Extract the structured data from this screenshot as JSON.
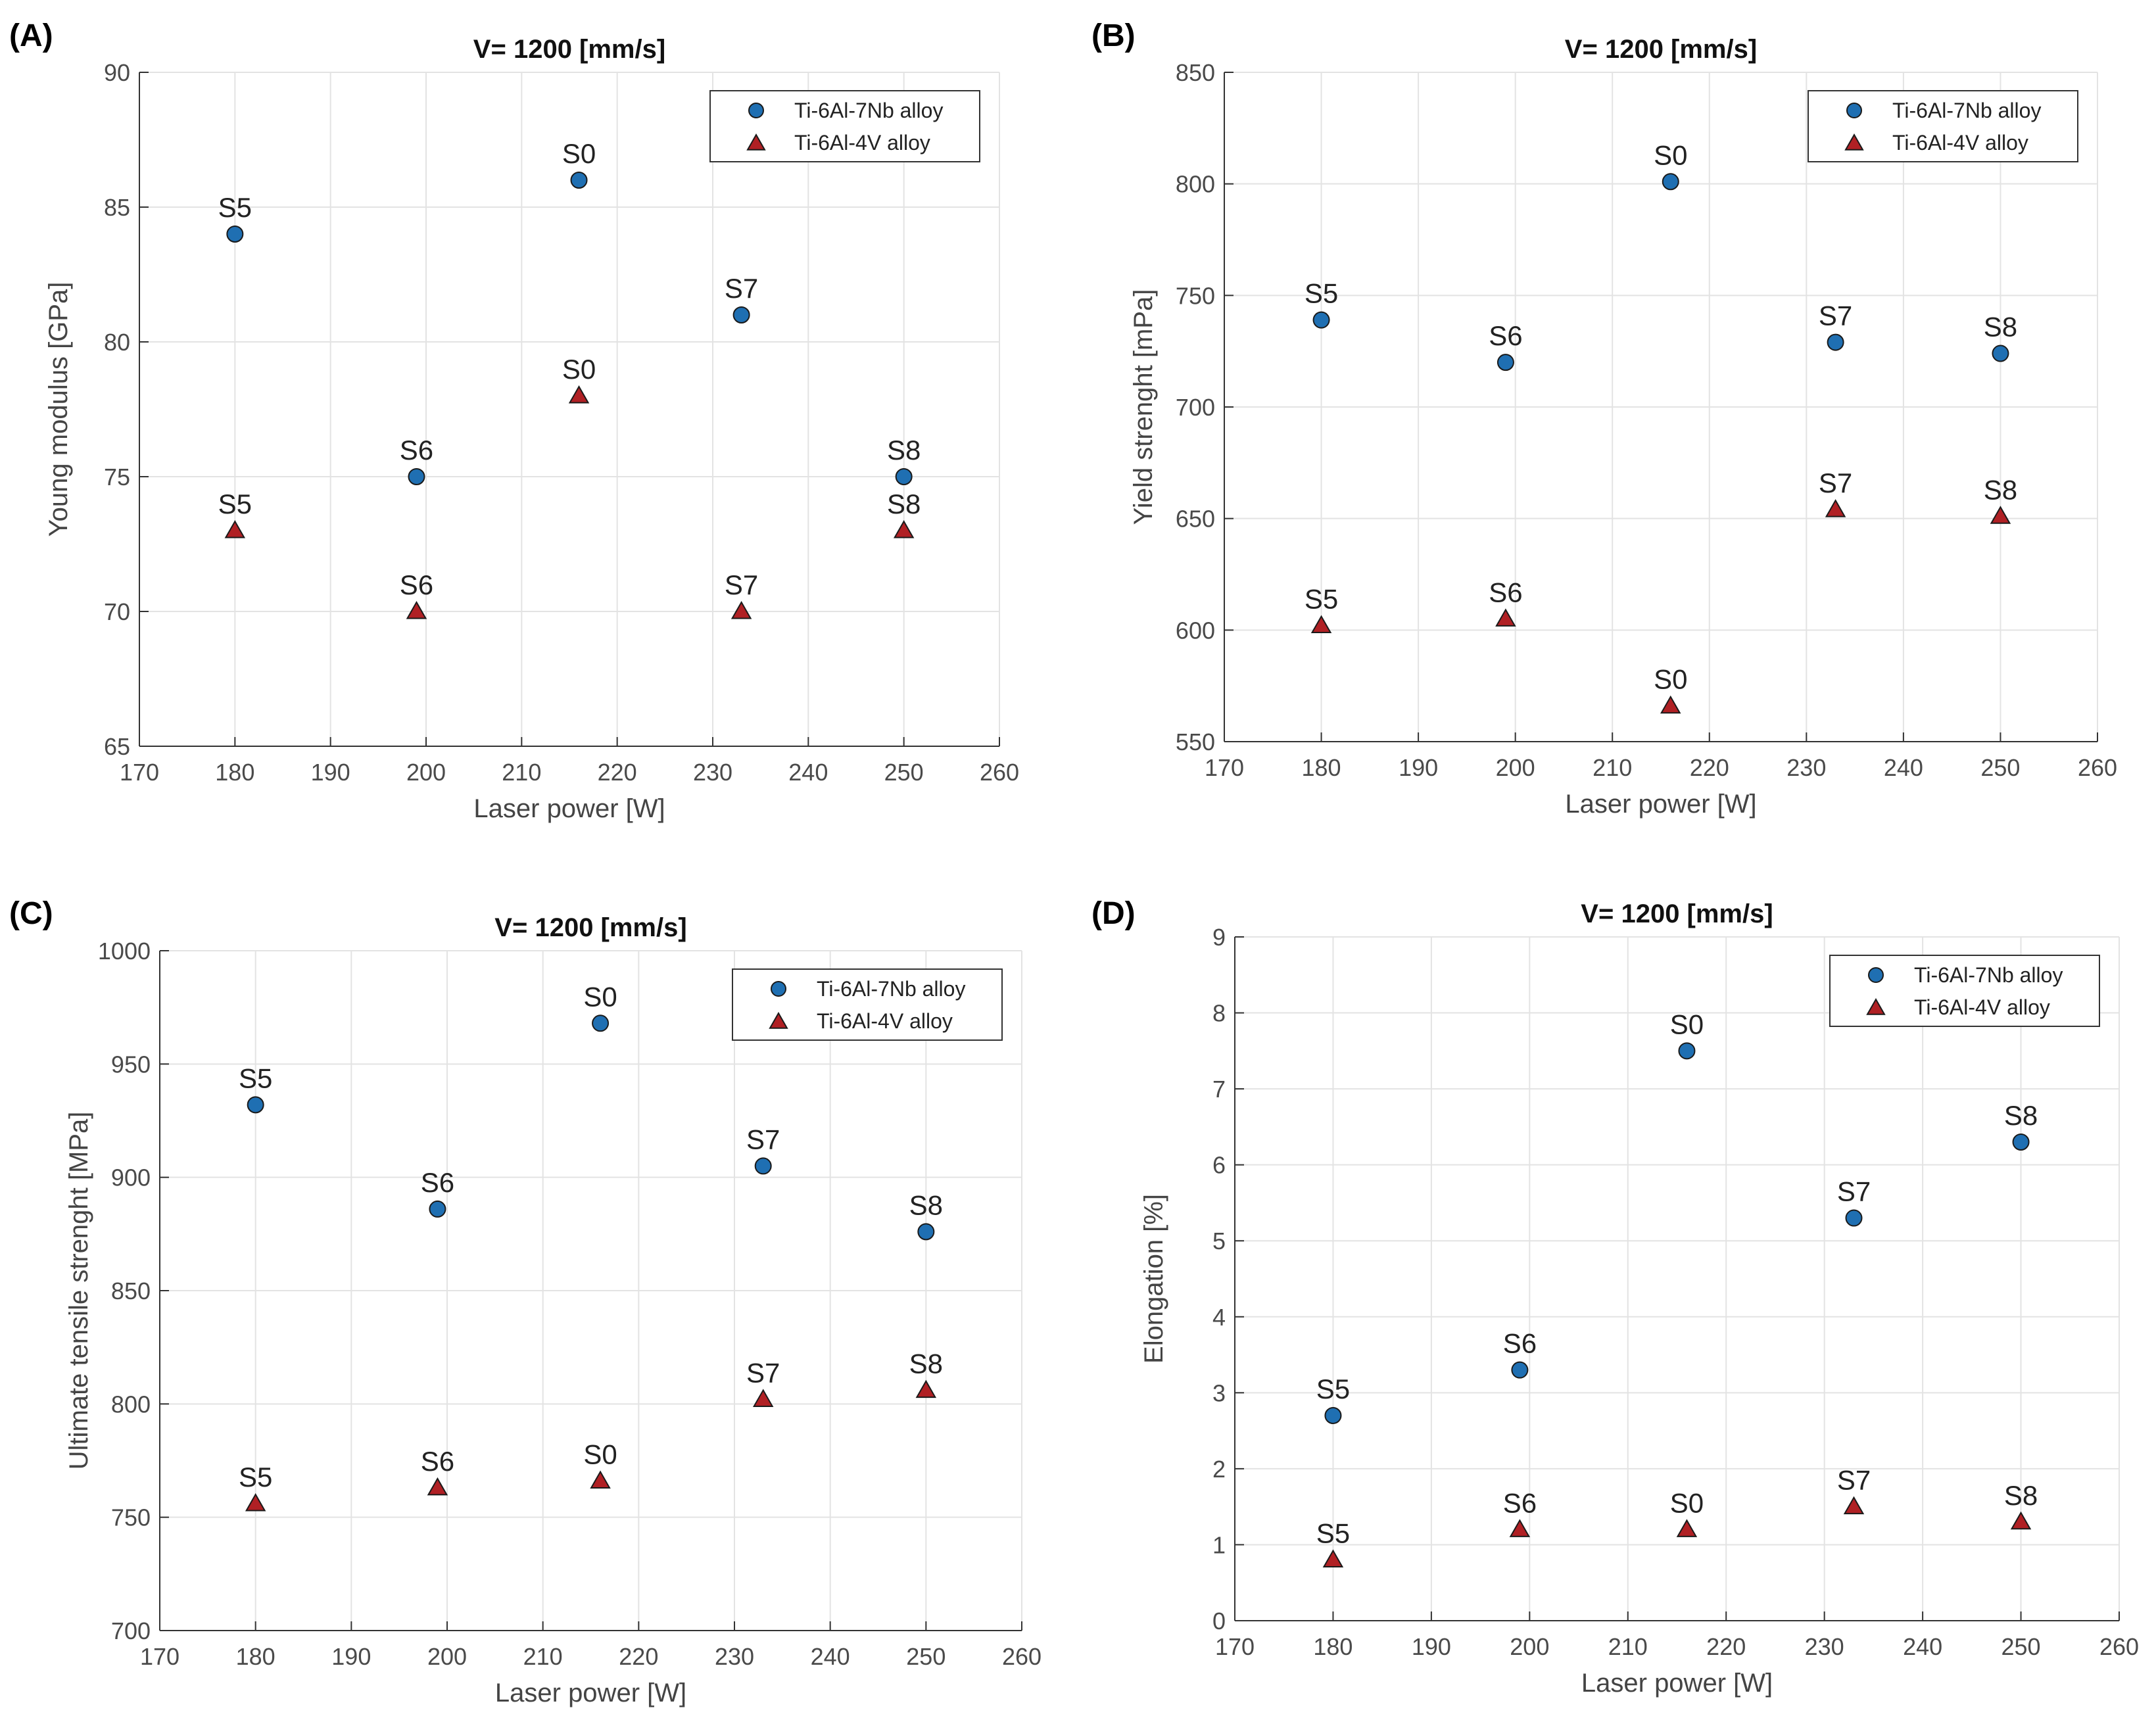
{
  "figure": {
    "panel_letters": [
      "(A)",
      "(B)",
      "(C)",
      "(D)"
    ]
  },
  "colors": {
    "nb_marker": "#1f6fb2",
    "v_marker": "#b02024",
    "marker_edge": "#1a1a1a"
  },
  "chart_data": [
    {
      "type": "scatter",
      "panel": "(A)",
      "title": "V= 1200 [mm/s]",
      "xlabel": "Laser power [W]",
      "ylabel": "Young modulus [GPa]",
      "xlim": [
        170,
        260
      ],
      "ylim": [
        65,
        90
      ],
      "xticks": [
        170,
        180,
        190,
        200,
        210,
        220,
        230,
        240,
        250,
        260
      ],
      "yticks": [
        65,
        70,
        75,
        80,
        85,
        90
      ],
      "legend_position": "top-right",
      "series": [
        {
          "name": "Ti-6Al-7Nb alloy",
          "marker": "circle",
          "points": [
            {
              "x": 180,
              "y": 84,
              "label": "S5"
            },
            {
              "x": 199,
              "y": 75,
              "label": "S6"
            },
            {
              "x": 216,
              "y": 86,
              "label": "S0"
            },
            {
              "x": 233,
              "y": 81,
              "label": "S7"
            },
            {
              "x": 250,
              "y": 75,
              "label": "S8"
            }
          ]
        },
        {
          "name": "Ti-6Al-4V alloy",
          "marker": "triangle",
          "points": [
            {
              "x": 180,
              "y": 73,
              "label": "S5"
            },
            {
              "x": 199,
              "y": 70,
              "label": "S6"
            },
            {
              "x": 216,
              "y": 78,
              "label": "S0"
            },
            {
              "x": 233,
              "y": 70,
              "label": "S7"
            },
            {
              "x": 250,
              "y": 73,
              "label": "S8"
            }
          ]
        }
      ]
    },
    {
      "type": "scatter",
      "panel": "(B)",
      "title": "V= 1200 [mm/s]",
      "xlabel": "Laser power [W]",
      "ylabel": "Yield strenght [mPa]",
      "xlim": [
        170,
        260
      ],
      "ylim": [
        550,
        850
      ],
      "xticks": [
        170,
        180,
        190,
        200,
        210,
        220,
        230,
        240,
        250,
        260
      ],
      "yticks": [
        550,
        600,
        650,
        700,
        750,
        800,
        850
      ],
      "legend_position": "top-right",
      "series": [
        {
          "name": "Ti-6Al-7Nb alloy",
          "marker": "circle",
          "points": [
            {
              "x": 180,
              "y": 739,
              "label": "S5"
            },
            {
              "x": 199,
              "y": 720,
              "label": "S6"
            },
            {
              "x": 216,
              "y": 801,
              "label": "S0"
            },
            {
              "x": 233,
              "y": 729,
              "label": "S7"
            },
            {
              "x": 250,
              "y": 724,
              "label": "S8"
            }
          ]
        },
        {
          "name": "Ti-6Al-4V alloy",
          "marker": "triangle",
          "points": [
            {
              "x": 180,
              "y": 602,
              "label": "S5"
            },
            {
              "x": 199,
              "y": 605,
              "label": "S6"
            },
            {
              "x": 216,
              "y": 566,
              "label": "S0"
            },
            {
              "x": 233,
              "y": 654,
              "label": "S7"
            },
            {
              "x": 250,
              "y": 651,
              "label": "S8"
            }
          ]
        }
      ]
    },
    {
      "type": "scatter",
      "panel": "(C)",
      "title": "V= 1200 [mm/s]",
      "xlabel": "Laser power [W]",
      "ylabel": "Ultimate tensile strenght [MPa]",
      "xlim": [
        170,
        260
      ],
      "ylim": [
        700,
        1000
      ],
      "xticks": [
        170,
        180,
        190,
        200,
        210,
        220,
        230,
        240,
        250,
        260
      ],
      "yticks": [
        700,
        750,
        800,
        850,
        900,
        950,
        1000
      ],
      "legend_position": "top-right",
      "series": [
        {
          "name": "Ti-6Al-7Nb alloy",
          "marker": "circle",
          "points": [
            {
              "x": 180,
              "y": 932,
              "label": "S5"
            },
            {
              "x": 199,
              "y": 886,
              "label": "S6"
            },
            {
              "x": 216,
              "y": 968,
              "label": "S0"
            },
            {
              "x": 233,
              "y": 905,
              "label": "S7"
            },
            {
              "x": 250,
              "y": 876,
              "label": "S8"
            }
          ]
        },
        {
          "name": "Ti-6Al-4V alloy",
          "marker": "triangle",
          "points": [
            {
              "x": 180,
              "y": 756,
              "label": "S5"
            },
            {
              "x": 199,
              "y": 763,
              "label": "S6"
            },
            {
              "x": 216,
              "y": 766,
              "label": "S0"
            },
            {
              "x": 233,
              "y": 802,
              "label": "S7"
            },
            {
              "x": 250,
              "y": 806,
              "label": "S8"
            }
          ]
        }
      ]
    },
    {
      "type": "scatter",
      "panel": "(D)",
      "title": "V= 1200 [mm/s]",
      "xlabel": "Laser power [W]",
      "ylabel": "Elongation [%]",
      "xlim": [
        170,
        260
      ],
      "ylim": [
        0,
        9
      ],
      "xticks": [
        170,
        180,
        190,
        200,
        210,
        220,
        230,
        240,
        250,
        260
      ],
      "yticks": [
        0,
        1,
        2,
        3,
        4,
        5,
        6,
        7,
        8,
        9
      ],
      "legend_position": "top-right",
      "series": [
        {
          "name": "Ti-6Al-7Nb alloy",
          "marker": "circle",
          "points": [
            {
              "x": 180,
              "y": 2.7,
              "label": "S5"
            },
            {
              "x": 199,
              "y": 3.3,
              "label": "S6"
            },
            {
              "x": 216,
              "y": 7.5,
              "label": "S0"
            },
            {
              "x": 233,
              "y": 5.3,
              "label": "S7"
            },
            {
              "x": 250,
              "y": 6.3,
              "label": "S8"
            }
          ]
        },
        {
          "name": "Ti-6Al-4V alloy",
          "marker": "triangle",
          "points": [
            {
              "x": 180,
              "y": 0.8,
              "label": "S5"
            },
            {
              "x": 199,
              "y": 1.2,
              "label": "S6"
            },
            {
              "x": 216,
              "y": 1.2,
              "label": "S0"
            },
            {
              "x": 233,
              "y": 1.5,
              "label": "S7"
            },
            {
              "x": 250,
              "y": 1.3,
              "label": "S8"
            }
          ]
        }
      ]
    }
  ]
}
